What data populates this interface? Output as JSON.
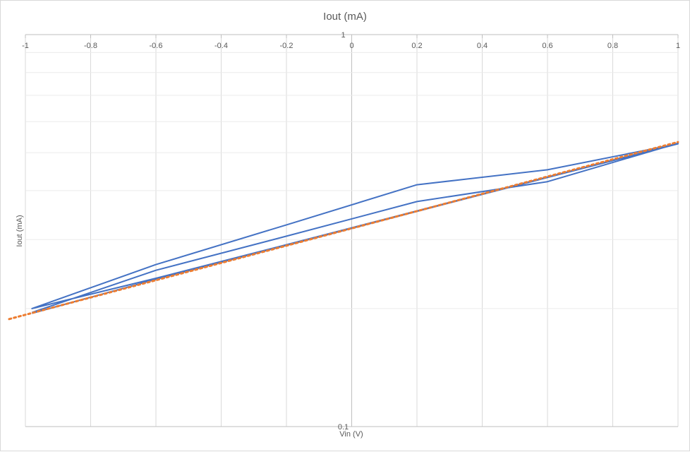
{
  "chart_data": {
    "type": "line",
    "title": "Iout (mA)",
    "xlabel": "Vin (V)",
    "ylabel": "Iout (mA)",
    "xlim": [
      -1,
      1
    ],
    "ylim": [
      0.1,
      1
    ],
    "y_scale": "log",
    "grid": true,
    "legend": "none",
    "x_ticks": [
      "-1",
      "-0.8",
      "-0.6",
      "-0.4",
      "-0.2",
      "0",
      "0.2",
      "0.4",
      "0.6",
      "0.8",
      "1"
    ],
    "y_ticks": [
      "1",
      "0.1"
    ],
    "series": [
      {
        "color": "#4472c4",
        "style": "solid",
        "x": [
          -0.98,
          -0.6,
          -0.2,
          0.2,
          0.6,
          1.0,
          0.6,
          0.2,
          -0.2,
          -0.6,
          -0.98,
          -0.6,
          -0.2,
          0.2,
          0.6,
          1.0,
          0.6,
          0.2,
          -0.2,
          -0.6,
          -0.98
        ],
        "y": [
          0.1945,
          0.2375,
          0.29,
          0.354,
          0.432,
          0.5265,
          0.452,
          0.414,
          0.327,
          0.259,
          0.2,
          0.239,
          0.291,
          0.355,
          0.433,
          0.528,
          0.4215,
          0.375,
          0.306,
          0.2505,
          0.1955
        ]
      },
      {
        "color": "#ed7d31",
        "style": "dotted",
        "x": [
          -1.05,
          1.0
        ],
        "y": [
          0.188,
          0.532
        ]
      }
    ]
  }
}
